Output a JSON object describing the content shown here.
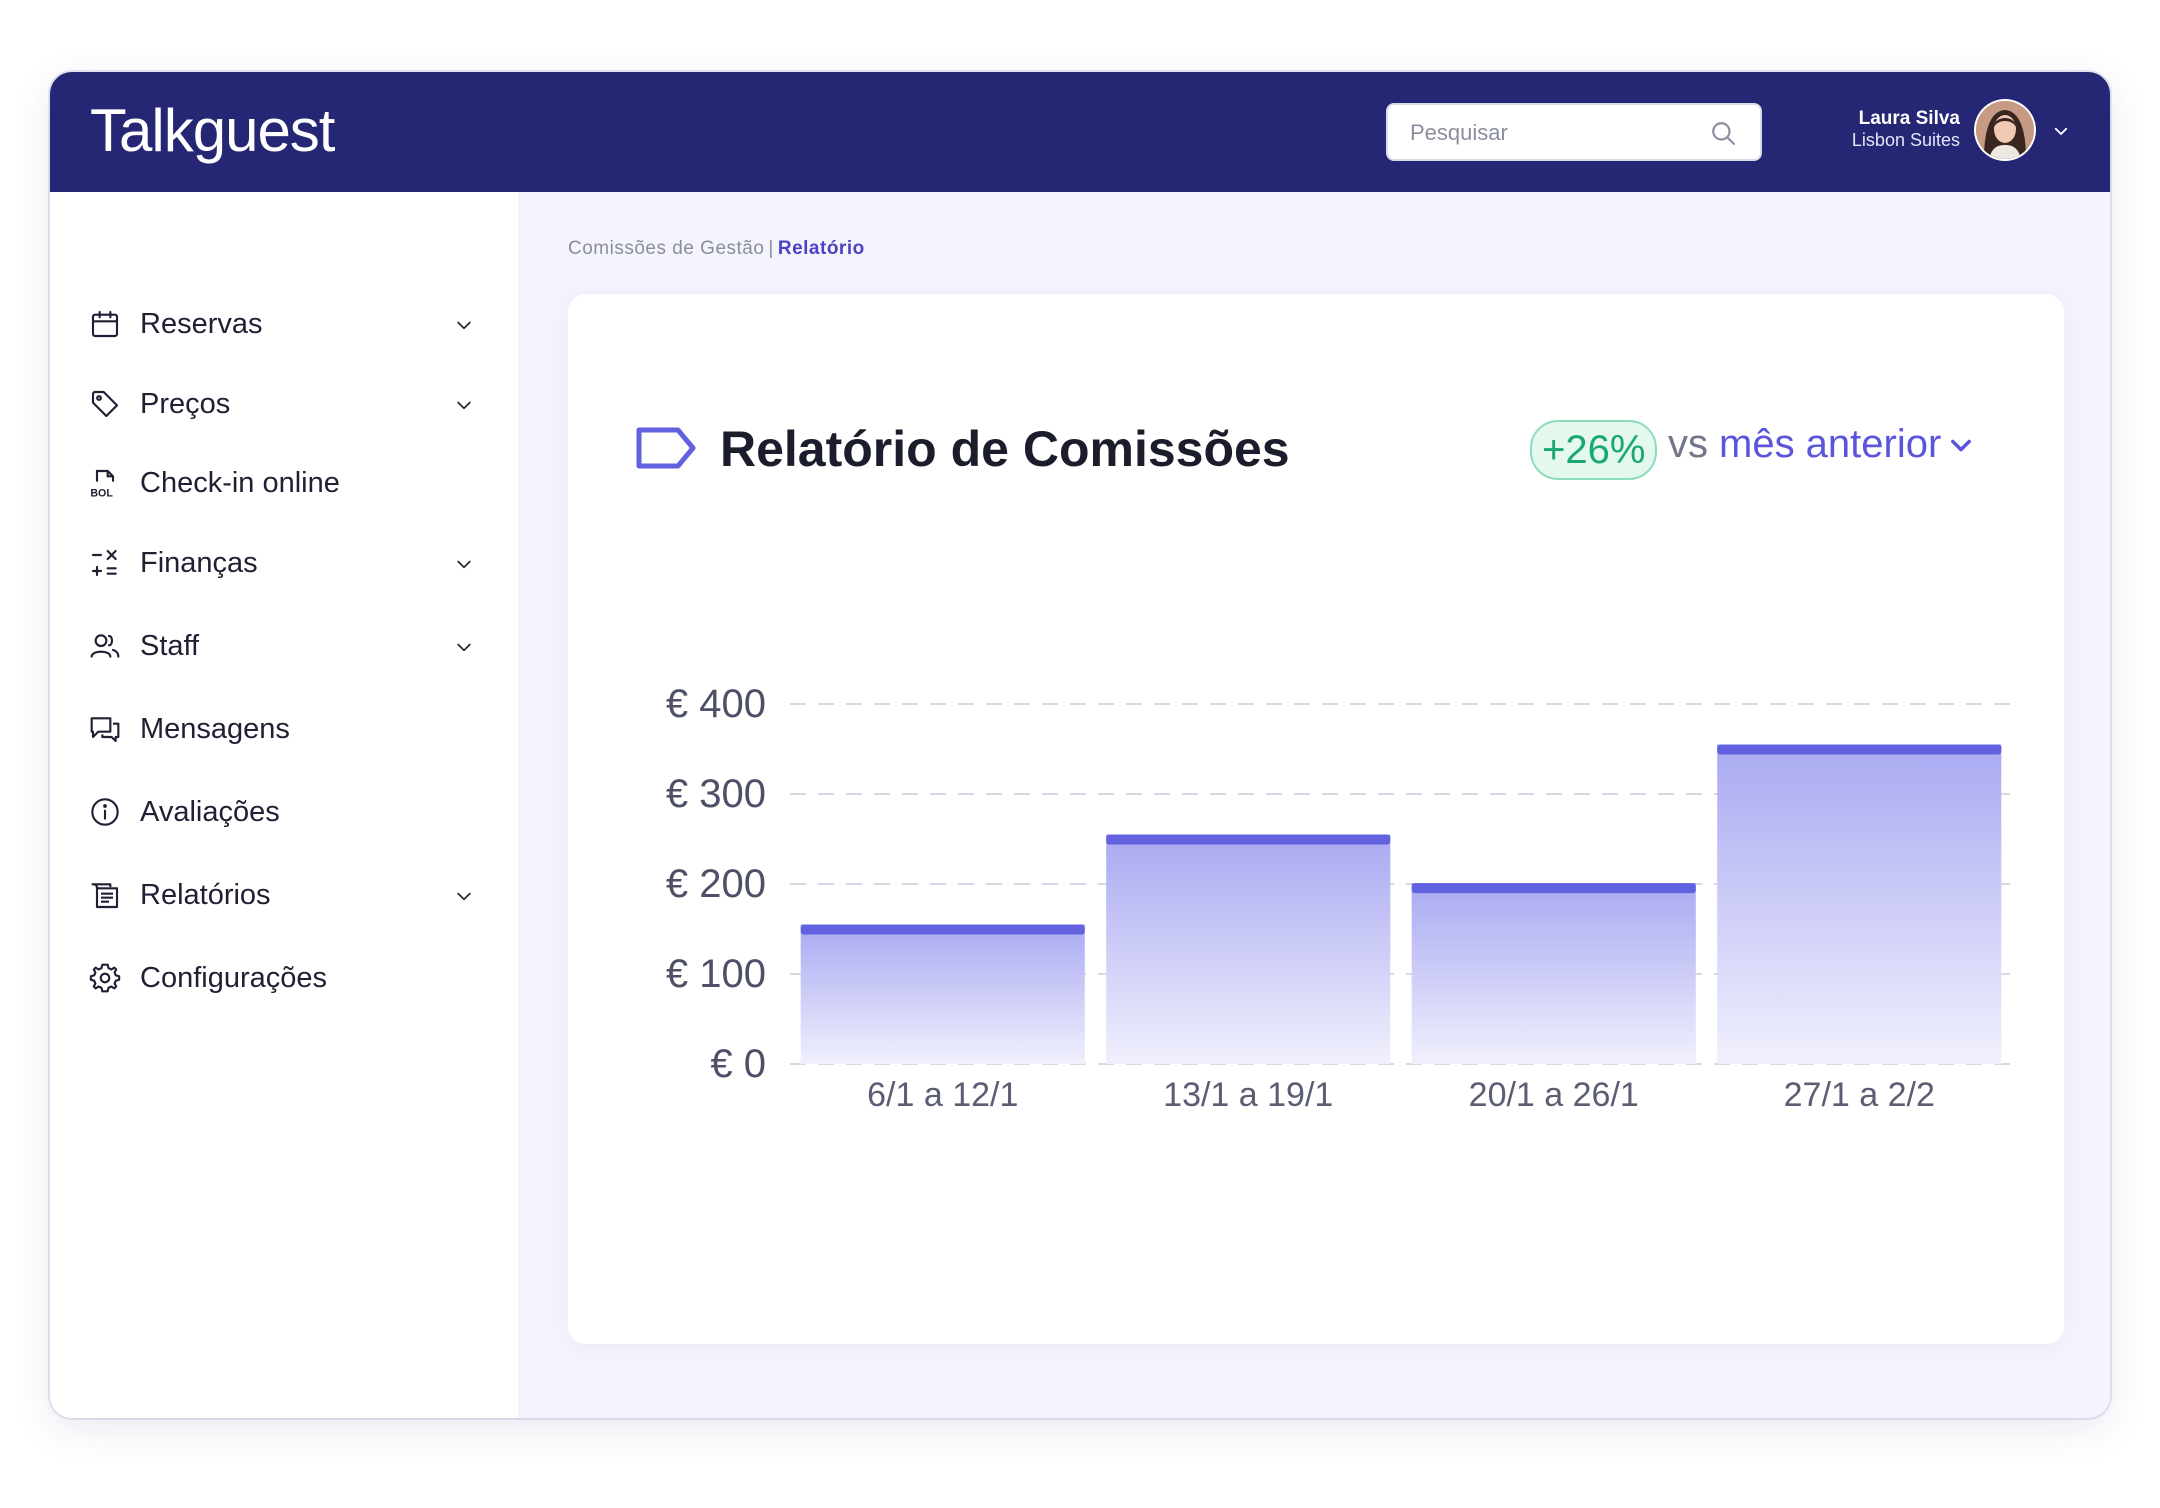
{
  "app": {
    "logo_text": "Talkguest"
  },
  "header": {
    "search_placeholder": "Pesquisar",
    "user_name": "Laura Silva",
    "user_org": "Lisbon Suites"
  },
  "sidebar": {
    "items": [
      {
        "label": "Reservas",
        "icon": "calendar-icon",
        "has_submenu": true
      },
      {
        "label": "Preços",
        "icon": "tag-icon",
        "has_submenu": true
      },
      {
        "label": "Check-in online",
        "icon": "bol-document-icon",
        "icon_text": "BOL",
        "has_submenu": false
      },
      {
        "label": "Finanças",
        "icon": "calculator-icon",
        "has_submenu": true
      },
      {
        "label": "Staff",
        "icon": "users-icon",
        "has_submenu": true
      },
      {
        "label": "Mensagens",
        "icon": "chat-icon",
        "has_submenu": false
      },
      {
        "label": "Avaliações",
        "icon": "info-icon",
        "has_submenu": false
      },
      {
        "label": "Relatórios",
        "icon": "report-icon",
        "has_submenu": true
      },
      {
        "label": "Configurações",
        "icon": "gear-icon",
        "has_submenu": false
      }
    ]
  },
  "breadcrumb": {
    "parent": "Comissões de Gestão",
    "separator": "|",
    "current": "Relatório"
  },
  "report": {
    "title": "Relatório de Comissões",
    "growth_badge": "+26%",
    "compare_prefix": "vs",
    "compare_period": "mês anterior"
  },
  "colors": {
    "header_bg": "#252674",
    "accent": "#6262e0",
    "bar_fill_top": "#a9a9f2",
    "bar_fill_bottom": "#f0f0fd",
    "growth_green": "#19a872"
  },
  "chart_data": {
    "type": "bar",
    "categories": [
      "6/1 a 12/1",
      "13/1 a 19/1",
      "20/1 a 26/1",
      "27/1 a 2/2"
    ],
    "values": [
      155,
      255,
      201,
      355
    ],
    "yticks": [
      "€ 0",
      "€ 100",
      "€ 200",
      "€ 300",
      "€ 400"
    ],
    "ylim": [
      0,
      400
    ],
    "grid": "dashed-horizontal"
  }
}
